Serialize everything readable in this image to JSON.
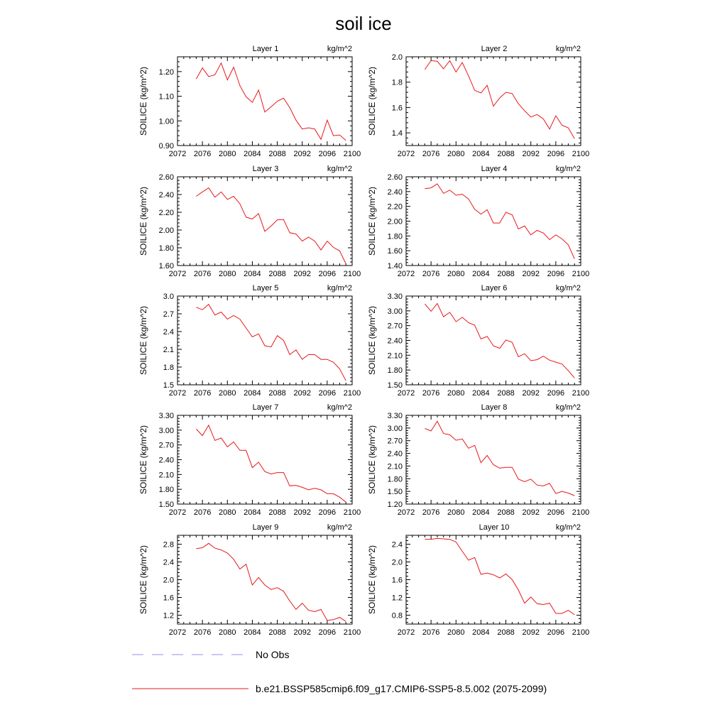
{
  "title": "soil ice",
  "legend": [
    {
      "label": "No Obs",
      "color": "#8f8fef",
      "dashed": true
    },
    {
      "label": "b.e21.BSSP585cmip6.f09_g17.CMIP6-SSP5-8.5.002 (2075-2099)",
      "color": "#e8181a",
      "dashed": false
    }
  ],
  "line_color": "#e8181a",
  "chart_data": [
    {
      "type": "line",
      "title": "Layer 1",
      "units": "kg/m^2",
      "ylabel": "SOILICE  (kg/m^2)",
      "xlim": [
        2072,
        2100
      ],
      "xticks": [
        "2072",
        "2076",
        "2080",
        "2084",
        "2088",
        "2092",
        "2096",
        "2100"
      ],
      "ylim": [
        0.9,
        1.26
      ],
      "yticks": [
        "0.90",
        "1.00",
        "1.10",
        "1.20"
      ],
      "x": [
        2075,
        2076,
        2077,
        2078,
        2079,
        2080,
        2081,
        2082,
        2083,
        2084,
        2085,
        2086,
        2087,
        2088,
        2089,
        2090,
        2091,
        2092,
        2093,
        2094,
        2095,
        2096,
        2097,
        2098,
        2099
      ],
      "y": [
        1.17,
        1.215,
        1.18,
        1.187,
        1.235,
        1.166,
        1.218,
        1.143,
        1.098,
        1.075,
        1.125,
        1.036,
        1.057,
        1.08,
        1.092,
        1.054,
        1.003,
        0.967,
        0.972,
        0.967,
        0.925,
        1.003,
        0.94,
        0.943,
        0.921
      ]
    },
    {
      "type": "line",
      "title": "Layer 2",
      "units": "kg/m^2",
      "ylabel": "SOILICE  (kg/m^2)",
      "xlim": [
        2072,
        2100
      ],
      "xticks": [
        "2072",
        "2076",
        "2080",
        "2084",
        "2088",
        "2092",
        "2096",
        "2100"
      ],
      "ylim": [
        1.3,
        2.0
      ],
      "yticks": [
        "1.4",
        "1.6",
        "1.8",
        "2.0"
      ],
      "x": [
        2075,
        2076,
        2077,
        2078,
        2079,
        2080,
        2081,
        2082,
        2083,
        2084,
        2085,
        2086,
        2087,
        2088,
        2089,
        2090,
        2091,
        2092,
        2093,
        2094,
        2095,
        2096,
        2097,
        2098,
        2099
      ],
      "y": [
        1.9,
        1.97,
        1.965,
        1.905,
        1.97,
        1.88,
        1.955,
        1.85,
        1.735,
        1.715,
        1.775,
        1.61,
        1.675,
        1.72,
        1.71,
        1.63,
        1.575,
        1.525,
        1.545,
        1.51,
        1.43,
        1.535,
        1.46,
        1.44,
        1.355
      ]
    },
    {
      "type": "line",
      "title": "Layer 3",
      "units": "kg/m^2",
      "ylabel": "SOILICE  (kg/m^2)",
      "xlim": [
        2072,
        2100
      ],
      "xticks": [
        "2072",
        "2076",
        "2080",
        "2084",
        "2088",
        "2092",
        "2096",
        "2100"
      ],
      "ylim": [
        1.6,
        2.6
      ],
      "yticks": [
        "1.60",
        "1.80",
        "2.00",
        "2.20",
        "2.40",
        "2.60"
      ],
      "x": [
        2075,
        2076,
        2077,
        2078,
        2079,
        2080,
        2081,
        2082,
        2083,
        2084,
        2085,
        2086,
        2087,
        2088,
        2089,
        2090,
        2091,
        2092,
        2093,
        2094,
        2095,
        2096,
        2097,
        2098,
        2099
      ],
      "y": [
        2.38,
        2.43,
        2.475,
        2.37,
        2.43,
        2.345,
        2.38,
        2.295,
        2.145,
        2.125,
        2.185,
        1.985,
        2.045,
        2.115,
        2.118,
        1.97,
        1.955,
        1.875,
        1.92,
        1.875,
        1.775,
        1.875,
        1.805,
        1.765,
        1.62
      ]
    },
    {
      "type": "line",
      "title": "Layer 4",
      "units": "kg/m^2",
      "ylabel": "SOILICE  (kg/m^2)",
      "xlim": [
        2072,
        2100
      ],
      "xticks": [
        "2072",
        "2076",
        "2080",
        "2084",
        "2088",
        "2092",
        "2096",
        "2100"
      ],
      "ylim": [
        1.4,
        2.6
      ],
      "yticks": [
        "1.40",
        "1.60",
        "1.80",
        "2.00",
        "2.20",
        "2.40",
        "2.60"
      ],
      "x": [
        2075,
        2076,
        2077,
        2078,
        2079,
        2080,
        2081,
        2082,
        2083,
        2084,
        2085,
        2086,
        2087,
        2088,
        2089,
        2090,
        2091,
        2092,
        2093,
        2094,
        2095,
        2096,
        2097,
        2098,
        2099
      ],
      "y": [
        2.44,
        2.45,
        2.505,
        2.375,
        2.42,
        2.35,
        2.365,
        2.3,
        2.16,
        2.095,
        2.155,
        1.975,
        1.975,
        2.12,
        2.085,
        1.895,
        1.935,
        1.815,
        1.875,
        1.84,
        1.75,
        1.815,
        1.76,
        1.68,
        1.49
      ]
    },
    {
      "type": "line",
      "title": "Layer 5",
      "units": "kg/m^2",
      "ylabel": "SOILICE  (kg/m^2)",
      "xlim": [
        2072,
        2100
      ],
      "xticks": [
        "2072",
        "2076",
        "2080",
        "2084",
        "2088",
        "2092",
        "2096",
        "2100"
      ],
      "ylim": [
        1.5,
        3.0
      ],
      "yticks": [
        "1.5",
        "1.8",
        "2.1",
        "2.4",
        "2.7",
        "3.0"
      ],
      "x": [
        2075,
        2076,
        2077,
        2078,
        2079,
        2080,
        2081,
        2082,
        2083,
        2084,
        2085,
        2086,
        2087,
        2088,
        2089,
        2090,
        2091,
        2092,
        2093,
        2094,
        2095,
        2096,
        2097,
        2098,
        2099
      ],
      "y": [
        2.81,
        2.77,
        2.86,
        2.68,
        2.73,
        2.61,
        2.67,
        2.61,
        2.46,
        2.31,
        2.36,
        2.16,
        2.14,
        2.33,
        2.25,
        2.01,
        2.09,
        1.93,
        2.01,
        2.01,
        1.93,
        1.93,
        1.88,
        1.77,
        1.57
      ]
    },
    {
      "type": "line",
      "title": "Layer 6",
      "units": "kg/m^2",
      "ylabel": "SOILICE  (kg/m^2)",
      "xlim": [
        2072,
        2100
      ],
      "xticks": [
        "2072",
        "2076",
        "2080",
        "2084",
        "2088",
        "2092",
        "2096",
        "2100"
      ],
      "ylim": [
        1.5,
        3.3
      ],
      "yticks": [
        "1.50",
        "1.80",
        "2.10",
        "2.40",
        "2.70",
        "3.00",
        "3.30"
      ],
      "x": [
        2075,
        2076,
        2077,
        2078,
        2079,
        2080,
        2081,
        2082,
        2083,
        2084,
        2085,
        2086,
        2087,
        2088,
        2089,
        2090,
        2091,
        2092,
        2093,
        2094,
        2095,
        2096,
        2097,
        2098,
        2099
      ],
      "y": [
        3.14,
        2.99,
        3.15,
        2.88,
        2.97,
        2.78,
        2.87,
        2.76,
        2.71,
        2.43,
        2.48,
        2.29,
        2.24,
        2.41,
        2.36,
        2.07,
        2.13,
        1.99,
        2.01,
        2.08,
        2.0,
        1.96,
        1.92,
        1.79,
        1.64
      ]
    },
    {
      "type": "line",
      "title": "Layer 7",
      "units": "kg/m^2",
      "ylabel": "SOILICE  (kg/m^2)",
      "xlim": [
        2072,
        2100
      ],
      "xticks": [
        "2072",
        "2076",
        "2080",
        "2084",
        "2088",
        "2092",
        "2096",
        "2100"
      ],
      "ylim": [
        1.5,
        3.3
      ],
      "yticks": [
        "1.50",
        "1.80",
        "2.10",
        "2.40",
        "2.70",
        "3.00",
        "3.30"
      ],
      "x": [
        2075,
        2076,
        2077,
        2078,
        2079,
        2080,
        2081,
        2082,
        2083,
        2084,
        2085,
        2086,
        2087,
        2088,
        2089,
        2090,
        2091,
        2092,
        2093,
        2094,
        2095,
        2096,
        2097,
        2098,
        2099
      ],
      "y": [
        3.02,
        2.89,
        3.1,
        2.79,
        2.84,
        2.66,
        2.76,
        2.59,
        2.59,
        2.24,
        2.35,
        2.16,
        2.11,
        2.14,
        2.14,
        1.87,
        1.88,
        1.84,
        1.79,
        1.82,
        1.79,
        1.71,
        1.71,
        1.64,
        1.54
      ]
    },
    {
      "type": "line",
      "title": "Layer 8",
      "units": "kg/m^2",
      "ylabel": "SOILICE  (kg/m^2)",
      "xlim": [
        2072,
        2100
      ],
      "xticks": [
        "2072",
        "2076",
        "2080",
        "2084",
        "2088",
        "2092",
        "2096",
        "2100"
      ],
      "ylim": [
        1.2,
        3.3
      ],
      "yticks": [
        "1.20",
        "1.50",
        "1.80",
        "2.10",
        "2.40",
        "2.70",
        "3.00",
        "3.30"
      ],
      "x": [
        2075,
        2076,
        2077,
        2078,
        2079,
        2080,
        2081,
        2082,
        2083,
        2084,
        2085,
        2086,
        2087,
        2088,
        2089,
        2090,
        2091,
        2092,
        2093,
        2094,
        2095,
        2096,
        2097,
        2098,
        2099
      ],
      "y": [
        2.99,
        2.93,
        3.16,
        2.87,
        2.84,
        2.71,
        2.74,
        2.52,
        2.59,
        2.18,
        2.35,
        2.13,
        2.05,
        2.07,
        2.07,
        1.79,
        1.73,
        1.79,
        1.65,
        1.63,
        1.69,
        1.45,
        1.5,
        1.46,
        1.4
      ]
    },
    {
      "type": "line",
      "title": "Layer 9",
      "units": "kg/m^2",
      "ylabel": "SOILICE  (kg/m^2)",
      "xlim": [
        2072,
        2100
      ],
      "xticks": [
        "2072",
        "2076",
        "2080",
        "2084",
        "2088",
        "2092",
        "2096",
        "2100"
      ],
      "ylim": [
        1.0,
        3.0
      ],
      "yticks": [
        "1.2",
        "1.6",
        "2.0",
        "2.4",
        "2.8"
      ],
      "x": [
        2075,
        2076,
        2077,
        2078,
        2079,
        2080,
        2081,
        2082,
        2083,
        2084,
        2085,
        2086,
        2087,
        2088,
        2089,
        2090,
        2091,
        2092,
        2093,
        2094,
        2095,
        2096,
        2097,
        2098,
        2099
      ],
      "y": [
        2.7,
        2.72,
        2.82,
        2.71,
        2.67,
        2.6,
        2.46,
        2.24,
        2.35,
        1.88,
        2.05,
        1.88,
        1.78,
        1.82,
        1.74,
        1.52,
        1.33,
        1.47,
        1.31,
        1.28,
        1.33,
        1.08,
        1.1,
        1.15,
        1.06
      ]
    },
    {
      "type": "line",
      "title": "Layer 10",
      "units": "kg/m^2",
      "ylabel": "SOILICE  (kg/m^2)",
      "xlim": [
        2072,
        2100
      ],
      "xticks": [
        "2072",
        "2076",
        "2080",
        "2084",
        "2088",
        "2092",
        "2096",
        "2100"
      ],
      "ylim": [
        0.6,
        2.6
      ],
      "yticks": [
        "0.8",
        "1.2",
        "1.6",
        "2.0",
        "2.4"
      ],
      "x": [
        2075,
        2076,
        2077,
        2078,
        2079,
        2080,
        2081,
        2082,
        2083,
        2084,
        2085,
        2086,
        2087,
        2088,
        2089,
        2090,
        2091,
        2092,
        2093,
        2094,
        2095,
        2096,
        2097,
        2098,
        2099
      ],
      "y": [
        2.51,
        2.51,
        2.53,
        2.52,
        2.51,
        2.45,
        2.24,
        2.04,
        2.1,
        1.72,
        1.75,
        1.71,
        1.64,
        1.73,
        1.6,
        1.37,
        1.07,
        1.21,
        1.06,
        1.04,
        1.07,
        0.84,
        0.84,
        0.91,
        0.81
      ]
    }
  ]
}
